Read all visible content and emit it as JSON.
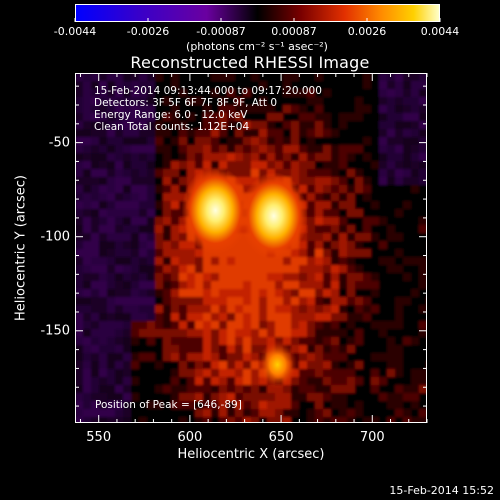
{
  "colorbar": {
    "tick_labels": [
      "-0.0044",
      "-0.0026",
      "-0.00087",
      "0.00087",
      "0.0026",
      "0.0044"
    ],
    "units_label": "(photons cm⁻² s⁻¹ asec⁻²)",
    "gradient_colors": [
      "#0000ff",
      "#3a00c8",
      "#6a00a0",
      "#000000",
      "#7a0000",
      "#e23000",
      "#ff8a00",
      "#ffd000",
      "#ffffc8"
    ]
  },
  "image": {
    "title": "Reconstructed RHESSI Image",
    "info_lines": [
      "15-Feb-2014 09:13:44.000 to 09:17:20.000",
      "Detectors: 3F 5F 6F 7F 8F 9F, Att 0",
      "Energy Range: 6.0 - 12.0 keV",
      "Clean     Total counts: 1.12E+04"
    ],
    "peak_label": "Position of Peak = [646,-89]",
    "xlabel": "Heliocentric X (arcsec)",
    "ylabel": "Heliocentric Y (arcsec)",
    "xticks": [
      "550",
      "600",
      "650",
      "700"
    ],
    "yticks": [
      "-50",
      "-100",
      "-150"
    ],
    "xlim": [
      537,
      730
    ],
    "ylim": [
      -199,
      -13
    ],
    "sources": [
      {
        "x": 614,
        "y": -86,
        "intensity": 0.0044
      },
      {
        "x": 646,
        "y": -89,
        "intensity": 0.0044
      },
      {
        "x": 648,
        "y": -168,
        "intensity": 0.0026
      }
    ]
  },
  "footer": {
    "date": "15-Feb-2014 15:52"
  }
}
